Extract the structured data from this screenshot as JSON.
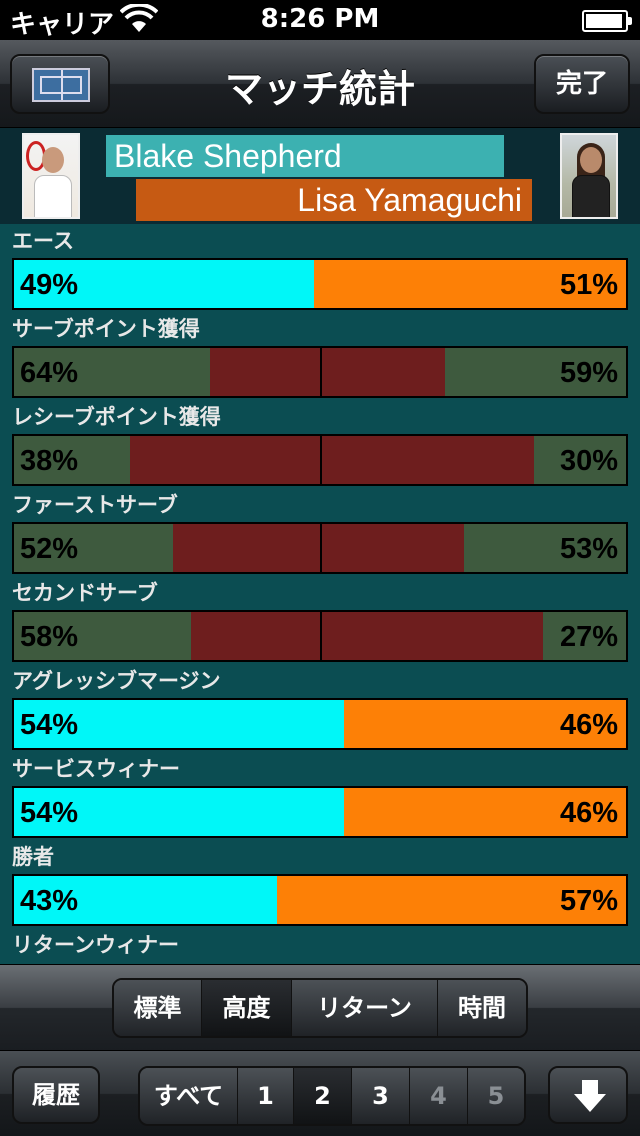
{
  "status_bar": {
    "carrier": "キャリア",
    "time": "8:26 PM"
  },
  "nav": {
    "title": "マッチ統計",
    "done_label": "完了"
  },
  "players": {
    "player1": "Blake Shepherd",
    "player2": "Lisa Yamaguchi"
  },
  "colors": {
    "cyan": "#00f7f8",
    "orange": "#fd8006",
    "green": "#3e5a3e",
    "maroon": "#6e1e1e",
    "teal_bg": "#0b4d52"
  },
  "stats": [
    {
      "label": "エース",
      "style": "split",
      "left": "49%",
      "right": "51%",
      "left_value": 49,
      "right_value": 51
    },
    {
      "label": "サーブポイント獲得",
      "style": "dual",
      "left": "64%",
      "right": "59%",
      "left_value": 64,
      "right_value": 59
    },
    {
      "label": "レシーブポイント獲得",
      "style": "dual",
      "left": "38%",
      "right": "30%",
      "left_value": 38,
      "right_value": 30
    },
    {
      "label": "ファーストサーブ",
      "style": "dual",
      "left": "52%",
      "right": "53%",
      "left_value": 52,
      "right_value": 53
    },
    {
      "label": "セカンドサーブ",
      "style": "dual",
      "left": "58%",
      "right": "27%",
      "left_value": 58,
      "right_value": 27
    },
    {
      "label": "アグレッシブマージン",
      "style": "split",
      "left": "54%",
      "right": "46%",
      "left_value": 54,
      "right_value": 46
    },
    {
      "label": "サービスウィナー",
      "style": "split",
      "left": "54%",
      "right": "46%",
      "left_value": 54,
      "right_value": 46
    },
    {
      "label": "勝者",
      "style": "split",
      "left": "43%",
      "right": "57%",
      "left_value": 43,
      "right_value": 57
    },
    {
      "label": "リターンウィナー",
      "style": "none"
    }
  ],
  "mode_tabs": [
    {
      "label": "標準",
      "selected": false
    },
    {
      "label": "高度",
      "selected": true
    },
    {
      "label": "リターン",
      "selected": false
    },
    {
      "label": "時間",
      "selected": false
    }
  ],
  "bottom": {
    "history_label": "履歴",
    "pages": [
      {
        "label": "すべて",
        "state": "normal"
      },
      {
        "label": "1",
        "state": "normal"
      },
      {
        "label": "2",
        "state": "selected"
      },
      {
        "label": "3",
        "state": "normal"
      },
      {
        "label": "4",
        "state": "disabled"
      },
      {
        "label": "5",
        "state": "disabled"
      }
    ],
    "down_icon": "down-arrow-icon"
  }
}
